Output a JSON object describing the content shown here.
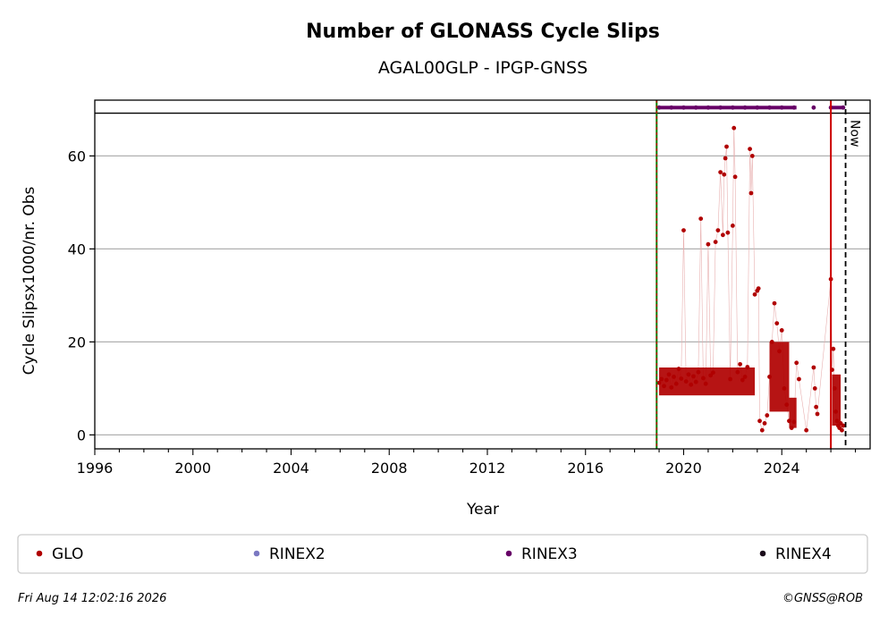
{
  "chart_data": {
    "type": "scatter",
    "title": "Number of GLONASS Cycle Slips",
    "subtitle": "AGAL00GLP - IPGP-GNSS",
    "xlabel": "Year",
    "ylabel": "Cycle Slipsx1000/nr. Obs",
    "xlim": [
      1996.0,
      2027.6
    ],
    "ylim": [
      -3,
      72
    ],
    "x_ticks": [
      1996,
      2000,
      2004,
      2008,
      2012,
      2016,
      2020,
      2024
    ],
    "x_tick_labels": [
      "1996",
      "2000",
      "2004",
      "2008",
      "2012",
      "2016",
      "2020",
      "2024"
    ],
    "y_ticks": [
      0,
      20,
      40,
      60
    ],
    "y_tick_labels": [
      "0",
      "20",
      "40",
      "60"
    ],
    "grid": "horizontal",
    "legend_position": "bottom",
    "vertical_lines": [
      {
        "x": 2018.9,
        "style": "green-red-dashed"
      },
      {
        "x": 2026.0,
        "style": "red-solid"
      },
      {
        "x": 2026.6,
        "style": "black-dashed",
        "label": "Now"
      }
    ],
    "series": [
      {
        "name": "GLO",
        "color": "#b00000",
        "values": [
          [
            2019.0,
            11.2
          ],
          [
            2019.1,
            12.0
          ],
          [
            2019.2,
            10.5
          ],
          [
            2019.3,
            11.8
          ],
          [
            2019.4,
            13.0
          ],
          [
            2019.5,
            10.2
          ],
          [
            2019.6,
            12.5
          ],
          [
            2019.7,
            11.0
          ],
          [
            2019.8,
            14.2
          ],
          [
            2019.9,
            12.1
          ],
          [
            2020.0,
            44.0
          ],
          [
            2020.1,
            11.5
          ],
          [
            2020.2,
            13.0
          ],
          [
            2020.3,
            10.8
          ],
          [
            2020.4,
            12.6
          ],
          [
            2020.5,
            11.4
          ],
          [
            2020.6,
            13.5
          ],
          [
            2020.7,
            46.5
          ],
          [
            2020.8,
            12.2
          ],
          [
            2020.9,
            11.0
          ],
          [
            2021.0,
            41.0
          ],
          [
            2021.1,
            12.8
          ],
          [
            2021.2,
            13.4
          ],
          [
            2021.3,
            41.5
          ],
          [
            2021.4,
            44.0
          ],
          [
            2021.5,
            56.5
          ],
          [
            2021.6,
            43.0
          ],
          [
            2021.65,
            56.0
          ],
          [
            2021.7,
            59.5
          ],
          [
            2021.75,
            62.0
          ],
          [
            2021.8,
            43.5
          ],
          [
            2021.9,
            12.0
          ],
          [
            2022.0,
            45.0
          ],
          [
            2022.05,
            66.0
          ],
          [
            2022.1,
            55.5
          ],
          [
            2022.2,
            13.5
          ],
          [
            2022.3,
            15.2
          ],
          [
            2022.4,
            11.8
          ],
          [
            2022.5,
            12.5
          ],
          [
            2022.6,
            14.6
          ],
          [
            2022.7,
            61.5
          ],
          [
            2022.75,
            52.0
          ],
          [
            2022.8,
            60.0
          ],
          [
            2022.9,
            30.2
          ],
          [
            2023.0,
            31.0
          ],
          [
            2023.05,
            31.5
          ],
          [
            2023.1,
            3.0
          ],
          [
            2023.2,
            1.0
          ],
          [
            2023.3,
            2.5
          ],
          [
            2023.4,
            4.2
          ],
          [
            2023.5,
            12.5
          ],
          [
            2023.6,
            20.0
          ],
          [
            2023.7,
            28.3
          ],
          [
            2023.8,
            24.0
          ],
          [
            2023.9,
            18.0
          ],
          [
            2024.0,
            22.5
          ],
          [
            2024.1,
            10.0
          ],
          [
            2024.2,
            6.5
          ],
          [
            2024.3,
            3.0
          ],
          [
            2024.4,
            1.5
          ],
          [
            2024.5,
            2.8
          ],
          [
            2024.6,
            15.5
          ],
          [
            2024.7,
            12.0
          ],
          [
            2025.0,
            1.0
          ],
          [
            2025.3,
            14.5
          ],
          [
            2025.35,
            10.0
          ],
          [
            2025.4,
            6.0
          ],
          [
            2025.45,
            4.5
          ],
          [
            2026.0,
            33.5
          ],
          [
            2026.05,
            14.0
          ],
          [
            2026.1,
            18.5
          ],
          [
            2026.15,
            10.0
          ],
          [
            2026.2,
            5.0
          ],
          [
            2026.25,
            3.0
          ],
          [
            2026.3,
            2.0
          ],
          [
            2026.35,
            1.5
          ],
          [
            2026.4,
            2.5
          ],
          [
            2026.45,
            1.0
          ],
          [
            2026.5,
            2.0
          ]
        ]
      },
      {
        "name": "RINEX2",
        "color": "#7b78c2",
        "values": []
      },
      {
        "name": "RINEX3",
        "color": "#660066",
        "values": [
          [
            2019.0,
            70.4
          ],
          [
            2019.5,
            70.4
          ],
          [
            2020.0,
            70.4
          ],
          [
            2020.5,
            70.4
          ],
          [
            2021.0,
            70.4
          ],
          [
            2021.5,
            70.4
          ],
          [
            2022.0,
            70.4
          ],
          [
            2022.5,
            70.4
          ],
          [
            2023.0,
            70.4
          ],
          [
            2023.5,
            70.4
          ],
          [
            2024.0,
            70.4
          ],
          [
            2024.5,
            70.4
          ],
          [
            2025.3,
            70.4
          ],
          [
            2026.0,
            70.4
          ],
          [
            2026.5,
            70.4
          ]
        ]
      },
      {
        "name": "RINEX4",
        "color": "#1a0a1a",
        "values": []
      }
    ]
  },
  "legend": [
    {
      "label": "GLO",
      "color": "#b00000"
    },
    {
      "label": "RINEX2",
      "color": "#7b78c2"
    },
    {
      "label": "RINEX3",
      "color": "#660066"
    },
    {
      "label": "RINEX4",
      "color": "#1a0a1a"
    }
  ],
  "now_label": "Now",
  "footer": {
    "timestamp": "Fri Aug 14 12:02:16 2026",
    "credit": "©GNSS@ROB"
  },
  "colors": {
    "glo": "#b00000",
    "rinex3": "#660066",
    "start_line": "#008000",
    "end_line": "#cc0000",
    "grid": "#b0b0b0"
  }
}
